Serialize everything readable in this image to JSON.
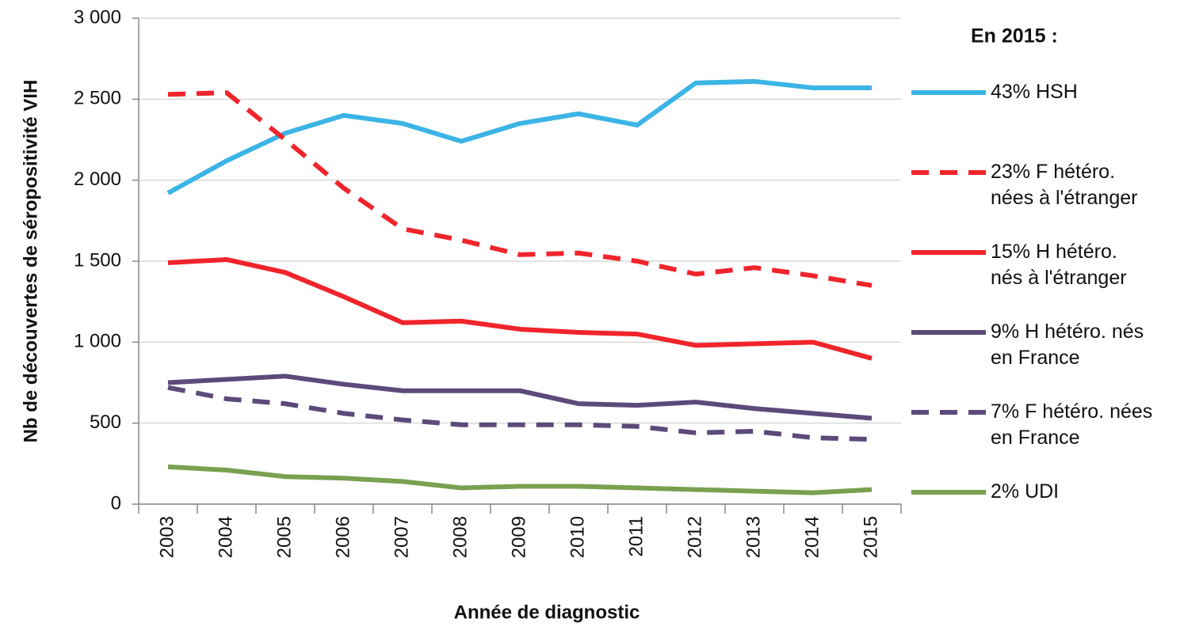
{
  "chart_data": {
    "type": "line",
    "x_label": "Année de diagnostic",
    "y_label": "Nb de découvertes de séropositivité VIH",
    "legend_title": "En 2015 :",
    "categories": [
      "2003",
      "2004",
      "2005",
      "2006",
      "2007",
      "2008",
      "2009",
      "2010",
      "2011",
      "2012",
      "2013",
      "2014",
      "2015"
    ],
    "ylim": [
      0,
      3000
    ],
    "yticks": [
      0,
      {
        "value": 500,
        "label": "500"
      },
      {
        "value": 1000,
        "label": "1 000"
      },
      {
        "value": 1500,
        "label": "1 500"
      },
      {
        "value": 2000,
        "label": "2 000"
      },
      {
        "value": 2500,
        "label": "2 500"
      },
      {
        "value": 3000,
        "label": "3 000"
      }
    ],
    "grid": true,
    "legend": "right",
    "series": [
      {
        "name": "43% HSH",
        "color": "#3cb4e6",
        "dashed": false,
        "values": [
          1920,
          2120,
          2290,
          2400,
          2350,
          2240,
          2350,
          2410,
          2340,
          2600,
          2610,
          2570,
          2570
        ]
      },
      {
        "name": "23% F hétéro.\nnées à l'étranger",
        "color": "#f0242b",
        "dashed": true,
        "values": [
          2530,
          2540,
          2250,
          1950,
          1700,
          1630,
          1540,
          1550,
          1500,
          1420,
          1460,
          1410,
          1350
        ]
      },
      {
        "name": "15% H hétéro.\nnés à l'étranger",
        "color": "#f0242b",
        "dashed": false,
        "values": [
          1490,
          1510,
          1430,
          1280,
          1120,
          1130,
          1080,
          1060,
          1050,
          980,
          990,
          1000,
          900
        ]
      },
      {
        "name": "9% H hétéro. nés\nen France",
        "color": "#5b4a7a",
        "dashed": false,
        "values": [
          750,
          770,
          790,
          740,
          700,
          700,
          700,
          620,
          610,
          630,
          590,
          560,
          530
        ]
      },
      {
        "name": "7% F hétéro. nées\nen France",
        "color": "#5b4a7a",
        "dashed": true,
        "values": [
          720,
          650,
          620,
          560,
          520,
          490,
          490,
          490,
          480,
          440,
          450,
          410,
          400
        ]
      },
      {
        "name": "2% UDI",
        "color": "#79a04f",
        "dashed": false,
        "values": [
          230,
          210,
          170,
          160,
          140,
          100,
          110,
          110,
          100,
          90,
          80,
          70,
          90
        ]
      }
    ]
  }
}
